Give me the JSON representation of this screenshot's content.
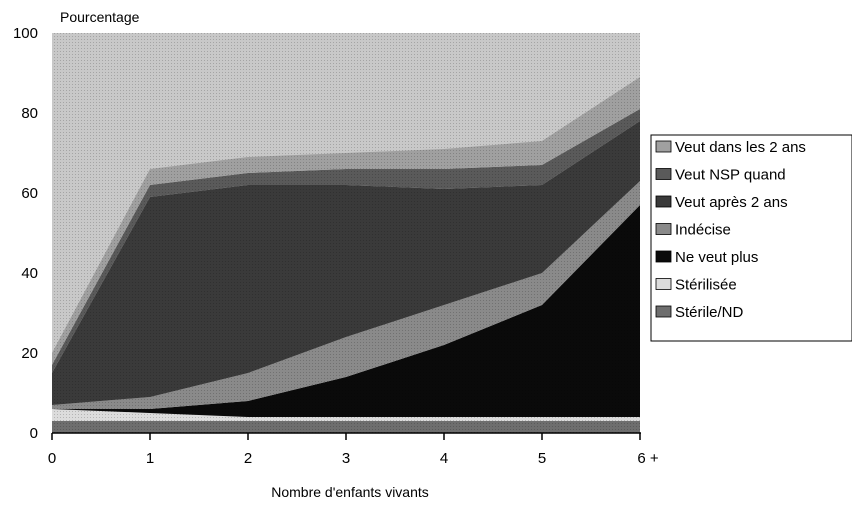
{
  "chart_data": {
    "type": "area",
    "stacked": true,
    "title": "Pourcentage",
    "xlabel": "Nombre d'enfants vivants",
    "ylabel": "",
    "x": [
      0,
      1,
      2,
      3,
      4,
      5,
      6
    ],
    "x_tick_labels": [
      "0",
      "1",
      "2",
      "3",
      "4",
      "5",
      "6 +"
    ],
    "ylim": [
      0,
      100
    ],
    "y_ticks": [
      "0",
      "20",
      "40",
      "60",
      "80",
      "100"
    ],
    "legend_position": "right",
    "series": [
      {
        "name": "Stérile/ND",
        "color": "#6e6e6e",
        "values": [
          3,
          3,
          3,
          3,
          3,
          3,
          3
        ]
      },
      {
        "name": "Stérilisée",
        "color": "#dcdcdc",
        "values": [
          3,
          2,
          1,
          1,
          1,
          1,
          1
        ]
      },
      {
        "name": "Ne veut plus",
        "color": "#0a0a0a",
        "values": [
          0,
          1,
          4,
          10,
          18,
          28,
          53
        ]
      },
      {
        "name": "Indécise",
        "color": "#8a8a8a",
        "values": [
          1,
          3,
          7,
          10,
          10,
          8,
          6
        ]
      },
      {
        "name": "Veut après 2 ans",
        "color": "#3a3a3a",
        "values": [
          8,
          50,
          47,
          38,
          29,
          22,
          15
        ]
      },
      {
        "name": "Veut NSP quand",
        "color": "#5a5a5a",
        "values": [
          2,
          3,
          3,
          4,
          5,
          5,
          3
        ]
      },
      {
        "name": "Veut dans les 2 ans",
        "color": "#a0a0a0",
        "values": [
          3,
          4,
          4,
          4,
          5,
          6,
          8
        ]
      }
    ],
    "background_color": "#c8c8c8"
  }
}
